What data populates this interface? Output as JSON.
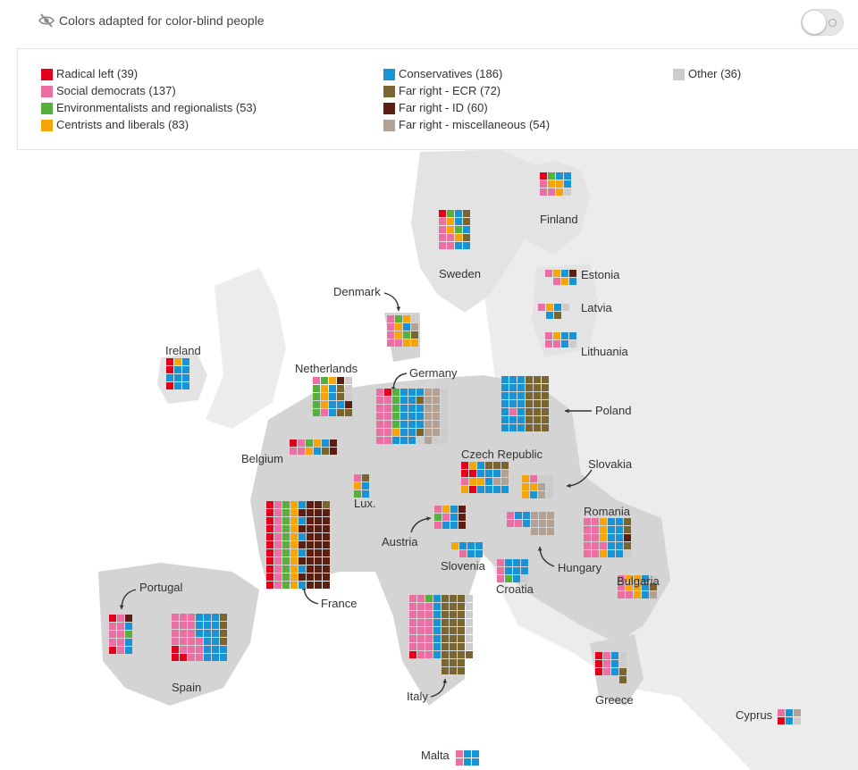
{
  "header": {
    "toggle_label": "Colors adapted for color-blind people",
    "toggle_on": false
  },
  "colors": {
    "map_land": "#e3e3e3",
    "map_highlight": "#9b9b9b",
    "cell_gap": "#ffffff",
    "text": "#333333"
  },
  "legend": [
    {
      "key": "RL",
      "label": "Radical left (39)",
      "color": "#e2001a"
    },
    {
      "key": "SD",
      "label": "Social democrats (137)",
      "color": "#ec6fa4"
    },
    {
      "key": "EN",
      "label": "Environmentalists and regionalists (53)",
      "color": "#57b03e"
    },
    {
      "key": "CL",
      "label": "Centrists and liberals (83)",
      "color": "#f5a40a"
    },
    {
      "key": "CO",
      "label": "Conservatives (186)",
      "color": "#1793d6"
    },
    {
      "key": "ECR",
      "label": "Far right - ECR (72)",
      "color": "#7a6530"
    },
    {
      "key": "ID",
      "label": "Far right - ID (60)",
      "color": "#5a1e12"
    },
    {
      "key": "FM",
      "label": "Far right - miscellaneous (54)",
      "color": "#b3a293"
    },
    {
      "key": "OT",
      "label": "Other (36)",
      "color": "#cccccc"
    }
  ],
  "countries": [
    {
      "name": "Finland",
      "cols": [
        [
          "RL",
          "SD",
          "SD"
        ],
        [
          "EN",
          "CL",
          "SD"
        ],
        [
          "CO",
          "CL",
          "CL"
        ],
        [
          "CO",
          "CO",
          "OT"
        ]
      ]
    },
    {
      "name": "Sweden",
      "cols": [
        [
          "RL",
          "SD",
          "SD",
          "SD",
          "SD"
        ],
        [
          "EN",
          "CL",
          "CL",
          "SD",
          "SD"
        ],
        [
          "CO",
          "CO",
          "EN",
          "CL",
          "CO"
        ],
        [
          "ECR",
          "ECR",
          "CO",
          "ECR",
          "CO"
        ]
      ]
    },
    {
      "name": "Estonia",
      "cols": [
        [
          "SD"
        ],
        [
          "CL",
          "SD"
        ],
        [
          "CO",
          "CL"
        ],
        [
          "ID",
          "CO"
        ]
      ]
    },
    {
      "name": "Latvia",
      "cols": [
        [
          "SD"
        ],
        [
          "CL",
          "CO"
        ],
        [
          "CO",
          "ECR"
        ],
        [
          "OT"
        ]
      ]
    },
    {
      "name": "Lithuania",
      "cols": [
        [
          "SD",
          "SD"
        ],
        [
          "CL",
          "SD"
        ],
        [
          "CO",
          "CO"
        ],
        [
          "CO",
          "OT"
        ]
      ]
    },
    {
      "name": "Denmark",
      "cols": [
        [
          "SD",
          "SD",
          "SD",
          "SD"
        ],
        [
          "EN",
          "CL",
          "CL",
          "SD"
        ],
        [
          "CL",
          "CO",
          "EN",
          "CL"
        ],
        [
          "OT",
          "FM",
          "ECR",
          "CL"
        ]
      ]
    },
    {
      "name": "Ireland",
      "cols": [
        [
          "RL",
          "RL",
          "CO",
          "RL"
        ],
        [
          "CL",
          "CO",
          "CO",
          "CO"
        ],
        [
          "CO",
          "CO",
          "CO",
          "CO"
        ]
      ]
    },
    {
      "name": "Netherlands",
      "cols": [
        [
          "SD",
          "EN",
          "EN",
          "EN",
          "EN"
        ],
        [
          "EN",
          "CL",
          "CL",
          "CL",
          "SD"
        ],
        [
          "CL",
          "CO",
          "CO",
          "CO",
          "CO"
        ],
        [
          "ID",
          "ECR",
          "ECR",
          "CO",
          "ECR"
        ],
        [
          "OT",
          "OT",
          "OT",
          "ID",
          "ECR"
        ]
      ]
    },
    {
      "name": "Germany",
      "cols": [
        [
          "SD",
          "SD",
          "SD",
          "SD",
          "SD",
          "SD",
          "SD"
        ],
        [
          "RL",
          "SD",
          "SD",
          "SD",
          "SD",
          "SD",
          "SD"
        ],
        [
          "EN",
          "EN",
          "EN",
          "EN",
          "EN",
          "CL",
          "CO"
        ],
        [
          "CO",
          "CO",
          "CO",
          "CO",
          "CO",
          "CO",
          "CO"
        ],
        [
          "CO",
          "CO",
          "CO",
          "CO",
          "CO",
          "CO",
          "CO"
        ],
        [
          "CO",
          "ECR",
          "CO",
          "CO",
          "CO",
          "ECR",
          "OT"
        ],
        [
          "FM",
          "FM",
          "FM",
          "FM",
          "FM",
          "FM",
          "FM"
        ],
        [
          "FM",
          "FM",
          "FM",
          "FM",
          "FM",
          "FM",
          "OT"
        ],
        [
          "OT",
          "OT",
          "OT",
          "OT",
          "OT",
          "OT",
          "OT"
        ]
      ]
    },
    {
      "name": "Poland",
      "cols": [
        [
          "CO",
          "CO",
          "CO",
          "CO",
          "CO",
          "CO",
          "CO"
        ],
        [
          "CO",
          "CO",
          "CO",
          "CO",
          "SD",
          "CO",
          "CO"
        ],
        [
          "CO",
          "CO",
          "CO",
          "CO",
          "CO",
          "CO",
          "CO"
        ],
        [
          "ECR",
          "ECR",
          "ECR",
          "ECR",
          "ECR",
          "ECR",
          "ECR"
        ],
        [
          "ECR",
          "ECR",
          "ECR",
          "ECR",
          "ECR",
          "ECR",
          "ECR"
        ],
        [
          "ECR",
          "ECR",
          "ECR",
          "ECR",
          "ECR",
          "ECR",
          "ECR"
        ]
      ]
    },
    {
      "name": "Belgium",
      "cols": [
        [
          "RL",
          "SD"
        ],
        [
          "SD",
          "SD"
        ],
        [
          "EN",
          "CL"
        ],
        [
          "CL",
          "CO"
        ],
        [
          "CO",
          "ECR"
        ],
        [
          "ID",
          "ID"
        ]
      ]
    },
    {
      "name": "Lux.",
      "cols": [
        [
          "SD",
          "CL",
          "EN"
        ],
        [
          "ECR",
          "CO",
          "CO"
        ]
      ]
    },
    {
      "name": "Czech Republic",
      "cols": [
        [
          "RL",
          "RL",
          "SD",
          "CL"
        ],
        [
          "CL",
          "RL",
          "CL",
          "RL"
        ],
        [
          "CO",
          "CO",
          "CL",
          "CO"
        ],
        [
          "ECR",
          "CO",
          "CO",
          "CO"
        ],
        [
          "ECR",
          "CO",
          "FM",
          "CO"
        ],
        [
          "ECR",
          "FM",
          "FM",
          "CO"
        ]
      ]
    },
    {
      "name": "Slovakia",
      "cols": [
        [
          "CL",
          "CL",
          "CL"
        ],
        [
          "SD",
          "CL",
          "CO"
        ],
        [
          "OT",
          "FM",
          "FM"
        ],
        [
          "OT",
          "OT",
          "OT"
        ]
      ]
    },
    {
      "name": "France",
      "cols": [
        [
          "RL",
          "RL",
          "RL",
          "RL",
          "RL",
          "RL",
          "RL",
          "RL",
          "RL",
          "RL",
          "RL"
        ],
        [
          "SD",
          "SD",
          "SD",
          "SD",
          "SD",
          "SD",
          "SD",
          "SD",
          "SD",
          "SD",
          "SD"
        ],
        [
          "EN",
          "EN",
          "EN",
          "EN",
          "EN",
          "EN",
          "EN",
          "EN",
          "EN",
          "EN",
          "EN"
        ],
        [
          "CL",
          "CL",
          "CL",
          "CL",
          "CL",
          "CL",
          "CL",
          "CL",
          "CL",
          "CL",
          "CL"
        ],
        [
          "CO",
          "ID",
          "CO",
          "ID",
          "CO",
          "ID",
          "CO",
          "ID",
          "CO",
          "ID",
          "CO"
        ],
        [
          "ID",
          "ID",
          "ID",
          "ID",
          "ID",
          "ID",
          "ID",
          "ID",
          "ID",
          "ID",
          "ID"
        ],
        [
          "ID",
          "ID",
          "ID",
          "ID",
          "ID",
          "ID",
          "ID",
          "ID",
          "ID",
          "ID",
          "ID"
        ],
        [
          "ECR",
          "ID",
          "ID",
          "ID",
          "ID",
          "ID",
          "ID",
          "ID",
          "ID",
          "ID",
          "ID"
        ]
      ]
    },
    {
      "name": "Austria",
      "cols": [
        [
          "SD",
          "EN",
          "SD"
        ],
        [
          "CL",
          "SD",
          "CO"
        ],
        [
          "CO",
          "CO",
          "CO"
        ],
        [
          "ID",
          "ID",
          "ID"
        ]
      ]
    },
    {
      "name": "Hungary",
      "cols": [
        [
          "SD",
          "SD"
        ],
        [
          "CO",
          "SD"
        ],
        [
          "CO",
          "CO"
        ],
        [
          "FM",
          "FM",
          "FM"
        ],
        [
          "FM",
          "FM",
          "FM"
        ],
        [
          "FM",
          "FM",
          "FM"
        ]
      ]
    },
    {
      "name": "Romania",
      "cols": [
        [
          "SD",
          "SD",
          "SD",
          "SD",
          "SD"
        ],
        [
          "SD",
          "SD",
          "SD",
          "SD",
          "SD"
        ],
        [
          "CL",
          "CL",
          "CL",
          "SD",
          "CL"
        ],
        [
          "CO",
          "CO",
          "CO",
          "CO",
          "CO"
        ],
        [
          "CO",
          "CO",
          "CO",
          "CO",
          "CO"
        ],
        [
          "ECR",
          "ECR",
          "ID",
          "ECR",
          "OT"
        ]
      ]
    },
    {
      "name": "Slovenia",
      "cols": [
        [
          "CL"
        ],
        [
          "CO",
          "SD"
        ],
        [
          "CO",
          "CO"
        ],
        [
          "CO",
          "CO"
        ]
      ]
    },
    {
      "name": "Croatia",
      "cols": [
        [
          "SD",
          "SD",
          "SD"
        ],
        [
          "CO",
          "CO",
          "EN"
        ],
        [
          "CO",
          "CO",
          "CO"
        ],
        [
          "CO",
          "CO",
          "OT"
        ]
      ]
    },
    {
      "name": "Bulgaria",
      "cols": [
        [
          "SD",
          "SD",
          "SD"
        ],
        [
          "CL",
          "CL",
          "SD"
        ],
        [
          "CL",
          "CL",
          "CL"
        ],
        [
          "CO",
          "CO",
          "CO"
        ],
        [
          "OT",
          "ECR",
          "FM"
        ]
      ]
    },
    {
      "name": "Portugal",
      "cols": [
        [
          "RL",
          "SD",
          "SD",
          "SD",
          "RL"
        ],
        [
          "SD",
          "SD",
          "SD",
          "SD",
          "SD"
        ],
        [
          "ID",
          "CO",
          "EN",
          "CO",
          "CO"
        ]
      ]
    },
    {
      "name": "Spain",
      "cols": [
        [
          "SD",
          "SD",
          "SD",
          "SD",
          "RL",
          "RL"
        ],
        [
          "SD",
          "SD",
          "SD",
          "SD",
          "SD",
          "RL"
        ],
        [
          "SD",
          "SD",
          "SD",
          "SD",
          "SD",
          "SD"
        ],
        [
          "CO",
          "CO",
          "CO",
          "SD",
          "SD",
          "SD"
        ],
        [
          "CO",
          "CO",
          "CO",
          "CO",
          "CO",
          "CO"
        ],
        [
          "CO",
          "CO",
          "CO",
          "CO",
          "CO",
          "CO"
        ],
        [
          "ECR",
          "ECR",
          "ECR",
          "ECR",
          "CO",
          "CO"
        ]
      ]
    },
    {
      "name": "Italy",
      "cols": [
        [
          "SD",
          "SD",
          "SD",
          "SD",
          "SD",
          "SD",
          "SD",
          "RL"
        ],
        [
          "SD",
          "SD",
          "SD",
          "SD",
          "SD",
          "SD",
          "SD",
          "SD"
        ],
        [
          "EN",
          "SD",
          "SD",
          "SD",
          "SD",
          "SD",
          "SD",
          "SD"
        ],
        [
          "CO",
          "CO",
          "CO",
          "CO",
          "CO",
          "CO",
          "CO",
          "CO"
        ],
        [
          "ECR",
          "ECR",
          "ECR",
          "ECR",
          "ECR",
          "ECR",
          "ECR",
          "ECR",
          "ECR",
          "ECR"
        ],
        [
          "ECR",
          "ECR",
          "ECR",
          "ECR",
          "ECR",
          "ECR",
          "ECR",
          "ECR",
          "ECR",
          "ECR"
        ],
        [
          "ECR",
          "ECR",
          "ECR",
          "ECR",
          "ECR",
          "ECR",
          "ECR",
          "ECR",
          "ECR",
          "ECR"
        ],
        [
          "OT",
          "OT",
          "OT",
          "OT",
          "OT",
          "OT",
          "OT",
          "ECR"
        ]
      ]
    },
    {
      "name": "Greece",
      "cols": [
        [
          "RL",
          "RL",
          "RL"
        ],
        [
          "SD",
          "SD",
          "SD"
        ],
        [
          "CO",
          "CO",
          "CO"
        ],
        [
          "OT",
          "OT",
          "ECR",
          "ECR"
        ]
      ]
    },
    {
      "name": "Cyprus",
      "cols": [
        [
          "SD",
          "RL"
        ],
        [
          "CO",
          "CO"
        ],
        [
          "FM",
          "OT"
        ]
      ]
    },
    {
      "name": "Malta",
      "cols": [
        [
          "SD",
          "SD"
        ],
        [
          "CO",
          "CO"
        ],
        [
          "CO",
          "CO"
        ]
      ]
    }
  ]
}
